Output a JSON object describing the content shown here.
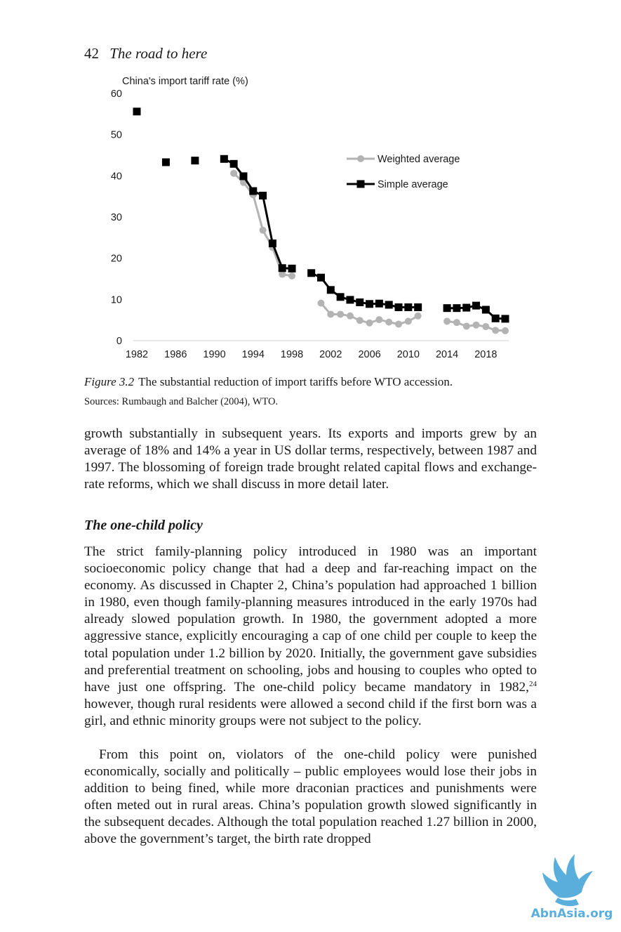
{
  "page": {
    "number": "42",
    "running_title": "The road to here"
  },
  "figure": {
    "label": "Figure 3.2",
    "caption": "The substantial reduction of import tariffs before WTO accession.",
    "sources": "Sources: Rumbaugh and Balcher (2004), WTO."
  },
  "chart_data": {
    "type": "line",
    "title": "China's import tariff rate (%)",
    "xlabel": "",
    "ylabel": "China's import tariff rate (%)",
    "ylim": [
      0,
      60
    ],
    "yticks": [
      "0",
      "10",
      "20",
      "30",
      "40",
      "50",
      "60"
    ],
    "xlim": [
      1982,
      2020
    ],
    "xticks": [
      "1982",
      "1986",
      "1990",
      "1994",
      "1998",
      "2002",
      "2006",
      "2010",
      "2014",
      "2018"
    ],
    "legend_position": "top-right",
    "series": [
      {
        "name": "Weighted average",
        "color": "#b3b3b3",
        "marker": "circle",
        "segments": [
          [
            [
              1992,
              40.6
            ],
            [
              1993,
              38.4
            ],
            [
              1994,
              35.4
            ],
            [
              1995,
              26.8
            ],
            [
              1996,
              22.6
            ],
            [
              1997,
              16.1
            ],
            [
              1998,
              15.7
            ]
          ],
          [
            [
              2001,
              9.1
            ],
            [
              2002,
              6.4
            ],
            [
              2003,
              6.4
            ],
            [
              2004,
              6.0
            ],
            [
              2005,
              4.9
            ],
            [
              2006,
              4.3
            ],
            [
              2007,
              5.1
            ],
            [
              2008,
              4.5
            ],
            [
              2009,
              4.0
            ],
            [
              2010,
              4.7
            ],
            [
              2011,
              6.0
            ]
          ],
          [
            [
              2014,
              4.7
            ],
            [
              2015,
              4.4
            ],
            [
              2016,
              3.5
            ],
            [
              2017,
              3.8
            ],
            [
              2018,
              3.4
            ],
            [
              2019,
              2.5
            ],
            [
              2020,
              2.4
            ]
          ]
        ]
      },
      {
        "name": "Simple average",
        "color": "#000000",
        "marker": "square",
        "segments": [
          [
            [
              1982,
              55.6
            ]
          ],
          [
            [
              1985,
              43.3
            ]
          ],
          [
            [
              1988,
              43.7
            ]
          ],
          [
            [
              1991,
              44.1
            ],
            [
              1992,
              42.9
            ],
            [
              1993,
              39.9
            ],
            [
              1994,
              36.3
            ],
            [
              1995,
              35.2
            ],
            [
              1996,
              23.6
            ],
            [
              1997,
              17.6
            ],
            [
              1998,
              17.5
            ]
          ],
          [
            [
              2000,
              16.4
            ],
            [
              2001,
              15.3
            ],
            [
              2002,
              12.3
            ],
            [
              2003,
              10.6
            ],
            [
              2004,
              9.9
            ],
            [
              2005,
              9.3
            ],
            [
              2006,
              8.9
            ],
            [
              2007,
              9.0
            ],
            [
              2008,
              8.7
            ],
            [
              2009,
              8.1
            ],
            [
              2010,
              8.1
            ],
            [
              2011,
              8.1
            ]
          ],
          [
            [
              2014,
              7.9
            ],
            [
              2015,
              7.9
            ],
            [
              2016,
              8.0
            ],
            [
              2017,
              8.5
            ],
            [
              2018,
              7.5
            ],
            [
              2019,
              5.4
            ],
            [
              2020,
              5.3
            ]
          ]
        ]
      }
    ]
  },
  "text": {
    "p1": "growth substantially in subsequent years. Its exports and imports grew by an average of 18% and 14% a year in US dollar terms, respectively, between 1987 and 1997. The blossoming of foreign trade brought related capital flows and exchange-rate reforms, which we shall discuss in more detail later.",
    "heading": "The one-child policy",
    "p2a": "The strict family-planning policy introduced in 1980 was an important socioeconomic policy change that had a deep and far-reaching impact on the economy. As discussed in Chapter 2, China’s population had approached 1 billion in 1980, even though family-planning measures introduced in the early 1970s had already slowed population growth. In 1980, the government adopted a more aggressive stance, explicitly encouraging a cap of one child per couple to keep the total population under 1.2 billion by 2020. Initially, the government gave subsidies and preferential treatment on schooling, jobs and housing to couples who opted to have just one offspring. The one-child policy became mandatory in 1982,",
    "footnote_ref": "24",
    "p2b": " however, though rural residents were allowed a second child if the first born was a girl, and ethnic minority groups were not subject to the policy.",
    "p3": "From this point on, violators of the one-child policy were punished economically, socially and politically – public employees would lose their jobs in addition to being fined, while more draconian practices and punishments were often meted out in rural areas. China’s population growth slowed significantly in the subsequent decades. Although the total population reached 1.27 billion in 2000, above the government’s target, the birth rate dropped"
  },
  "watermark": {
    "text": "AbnAsia.org",
    "color": "#5aaedc"
  }
}
